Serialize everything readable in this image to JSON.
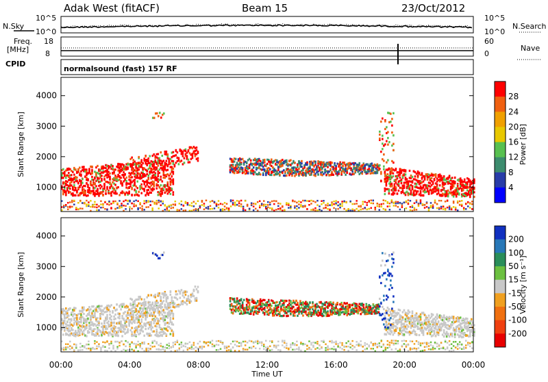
{
  "chart_data": {
    "type": "heatmap",
    "header": {
      "station": "Adak West (fitACF)",
      "beam": "Beam 15",
      "date": "23/Oct/2012"
    },
    "noise_panel": {
      "left_label": "N.Sky",
      "right_label": "N.Search",
      "left_ticks": [
        "10^5",
        "10^0"
      ],
      "right_ticks": [
        "10^5",
        "10^0"
      ]
    },
    "freq_panel": {
      "left_label": "Freq.",
      "left_unit": "[MHz]",
      "right_label": "Nave",
      "left_ticks": [
        "18",
        "8"
      ],
      "right_ticks": [
        "60",
        "0"
      ]
    },
    "cpid": {
      "label": "CPID",
      "program": "normalsound (fast) 157 RF"
    },
    "x_axis": {
      "label": "Time UT",
      "ticks": [
        "00:00",
        "04:00",
        "08:00",
        "12:00",
        "16:00",
        "20:00",
        "00:00"
      ],
      "range_hours": [
        0,
        24
      ]
    },
    "power_panel": {
      "ylabel": "Slant Range [km]",
      "yticks": [
        "4000",
        "3000",
        "2000",
        "1000"
      ],
      "ylim": [
        200,
        4600
      ],
      "colorbar_label": "Power [dB]",
      "colorbar_ticks": [
        "28",
        "24",
        "20",
        "16",
        "12",
        "8",
        "4"
      ],
      "colors": [
        "#0000ff",
        "#283ca8",
        "#3c8c6e",
        "#58c050",
        "#e8c800",
        "#f0a000",
        "#f06010",
        "#ff0000"
      ]
    },
    "velocity_panel": {
      "ylabel": "Slant Range [km]",
      "yticks": [
        "4000",
        "3000",
        "2000",
        "1000"
      ],
      "ylim": [
        200,
        4600
      ],
      "colorbar_label": "Velocity [m s⁻¹]",
      "colorbar_ticks": [
        "200",
        "100",
        "50",
        "15",
        "-15",
        "-50",
        "-100",
        "-200"
      ],
      "colors": [
        "#1030c0",
        "#2878b8",
        "#2a8e5a",
        "#6cc040",
        "#c8c8c8",
        "#f0a020",
        "#f07010",
        "#f04010",
        "#e80000"
      ]
    }
  }
}
